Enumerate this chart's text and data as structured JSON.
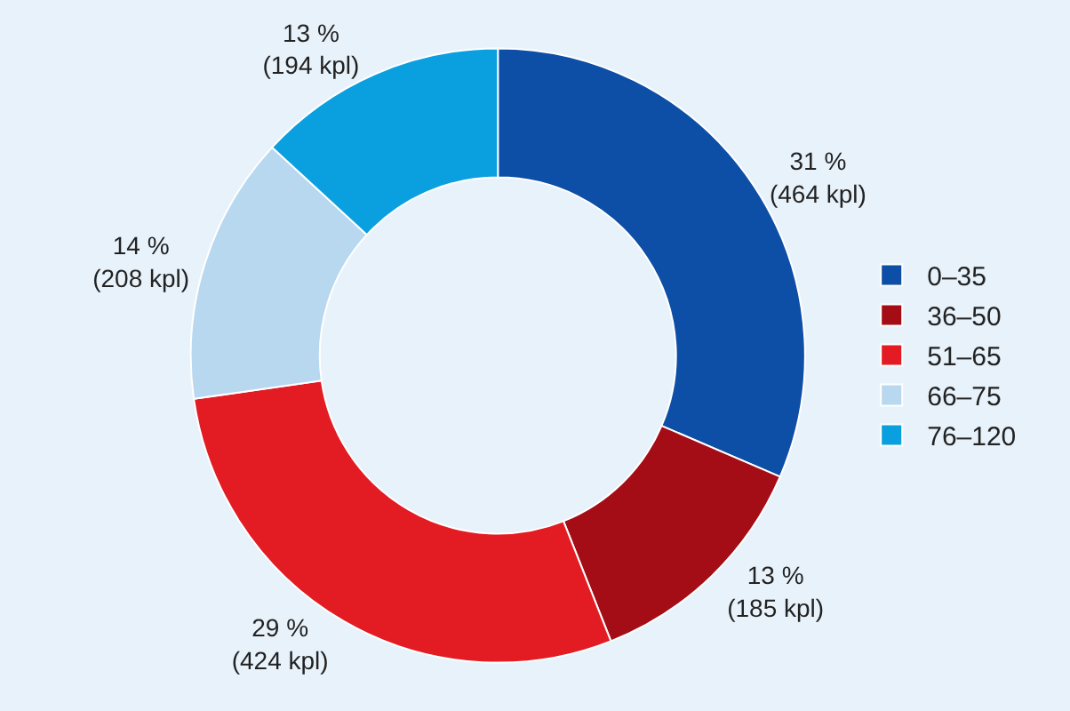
{
  "chart_data": {
    "type": "donut",
    "categories": [
      "0–35",
      "36–50",
      "51–65",
      "66–75",
      "76–120"
    ],
    "values": [
      464,
      185,
      424,
      208,
      194
    ],
    "colors": [
      "#0d4ea6",
      "#a50d16",
      "#e31b23",
      "#b8d8f0",
      "#0aa0e0"
    ],
    "value_labels": [
      "31 %\n(464 kpl)",
      "13 %\n(185 kpl)",
      "29 %\n(424 kpl)",
      "14 %\n(208 kpl)",
      "13 %\n(194 kpl)"
    ],
    "legend": "right"
  }
}
